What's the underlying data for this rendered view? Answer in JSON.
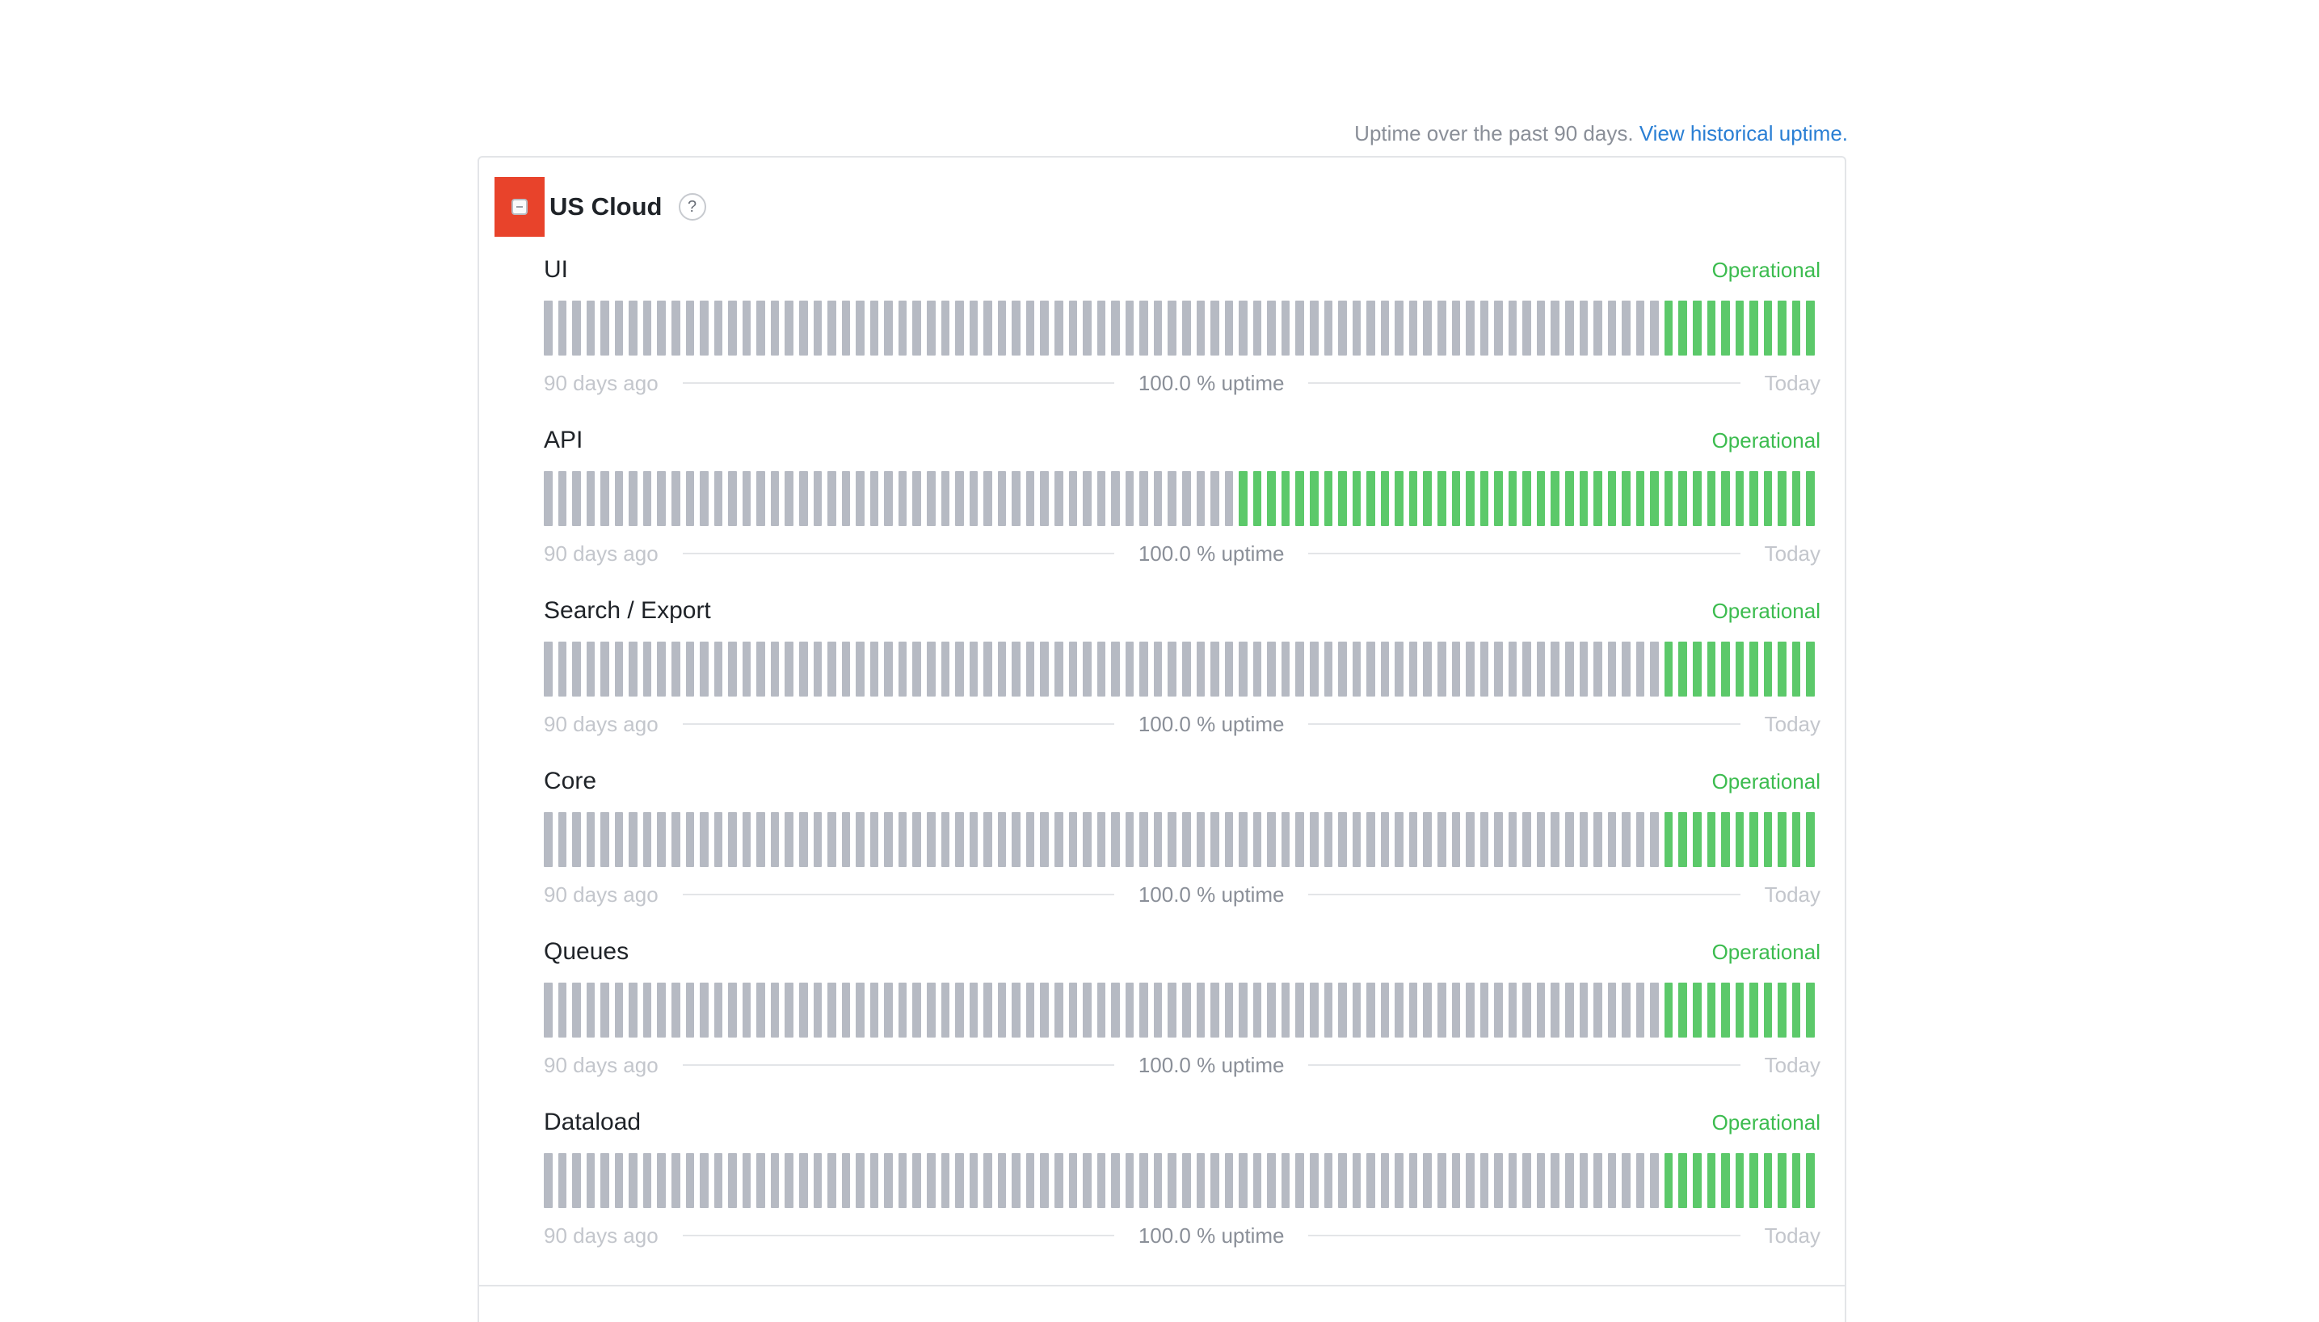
{
  "header": {
    "uptime_text": "Uptime over the past 90 days.",
    "history_link": "View historical uptime."
  },
  "group": {
    "title": "US Cloud",
    "help": "?"
  },
  "colors": {
    "operational": "#3cbc4f",
    "bar_no_data": "#b6bac3",
    "bar_operational": "#5cc96a",
    "toggle_highlight": "#e8432b"
  },
  "days_total": 90,
  "components": [
    {
      "name": "UI",
      "status": "Operational",
      "green_days": 11,
      "start_label": "90 days ago",
      "uptime_label": "100.0 % uptime",
      "end_label": "Today"
    },
    {
      "name": "API",
      "status": "Operational",
      "green_days": 41,
      "start_label": "90 days ago",
      "uptime_label": "100.0 % uptime",
      "end_label": "Today"
    },
    {
      "name": "Search / Export",
      "status": "Operational",
      "green_days": 11,
      "start_label": "90 days ago",
      "uptime_label": "100.0 % uptime",
      "end_label": "Today"
    },
    {
      "name": "Core",
      "status": "Operational",
      "green_days": 11,
      "start_label": "90 days ago",
      "uptime_label": "100.0 % uptime",
      "end_label": "Today"
    },
    {
      "name": "Queues",
      "status": "Operational",
      "green_days": 11,
      "start_label": "90 days ago",
      "uptime_label": "100.0 % uptime",
      "end_label": "Today"
    },
    {
      "name": "Dataload",
      "status": "Operational",
      "green_days": 11,
      "start_label": "90 days ago",
      "uptime_label": "100.0 % uptime",
      "end_label": "Today"
    }
  ]
}
